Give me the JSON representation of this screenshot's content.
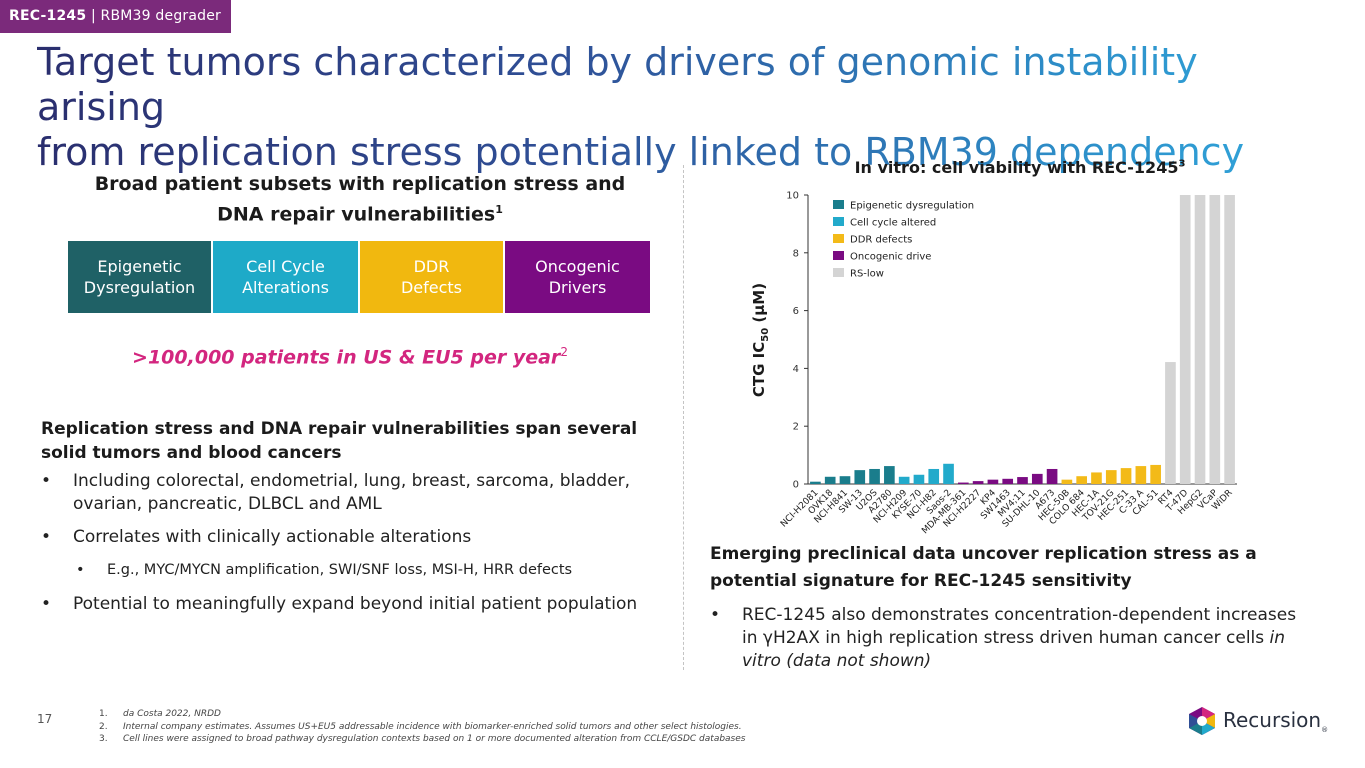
{
  "tag": {
    "code": "REC-1245",
    "sep": " | ",
    "label": "RBM39 degrader"
  },
  "title": {
    "line1": "Target tumors characterized by drivers of genomic instability arising",
    "line2": "from replication stress potentially linked to RBM39 dependency"
  },
  "left": {
    "heading": "Broad patient subsets with replication stress and DNA repair vulnerabilities",
    "heading_sup": "1",
    "boxes": [
      {
        "l1": "Epigenetic",
        "l2": "Dysregulation",
        "color": "#1f6166"
      },
      {
        "l1": "Cell Cycle",
        "l2": "Alterations",
        "color": "#1eaac8"
      },
      {
        "l1": "DDR",
        "l2": "Defects",
        "color": "#f1b80f"
      },
      {
        "l1": "Oncogenic",
        "l2": "Drivers",
        "color": "#7a0b82"
      }
    ],
    "patients": ">100,000 patients in US & EU5 per year",
    "patients_sup": "2",
    "section_heading": "Replication stress and DNA repair vulnerabilities span several solid tumors and blood cancers",
    "bullet1": "Including colorectal, endometrial, lung, breast, sarcoma, bladder, ovarian, pancreatic, DLBCL and AML",
    "bullet2": "Correlates with clinically actionable alterations",
    "sub_bullet": "E.g., MYC/MYCN amplification, SWI/SNF loss, MSI-H, HRR defects",
    "bullet3": "Potential to meaningfully expand beyond initial patient population"
  },
  "chart_title": "In vitro: cell viability with REC-1245",
  "chart_title_sup": "3",
  "chart_data": {
    "type": "bar",
    "title": "In vitro: cell viability with REC-1245",
    "ylabel": "CTG IC50 (µM)",
    "ylabel_main": "CTG IC",
    "ylabel_sub": "50",
    "ylabel_unit": " (µM)",
    "ylim": [
      0,
      10
    ],
    "yticks": [
      0,
      2,
      4,
      6,
      8,
      10
    ],
    "legend": [
      {
        "name": "Epigenetic dysregulation",
        "color": "#1a7d8c"
      },
      {
        "name": "Cell cycle altered",
        "color": "#22aacb"
      },
      {
        "name": "DDR defects",
        "color": "#f3ba18"
      },
      {
        "name": "Oncogenic drive",
        "color": "#7a0b82"
      },
      {
        "name": "RS-low",
        "color": "#d4d4d4"
      }
    ],
    "categories": [
      "NCI-H2081",
      "OVK18",
      "NCI-H841",
      "SW-13",
      "U2OS",
      "A2780",
      "NCI-H209",
      "KYSE-70",
      "NCI-H82",
      "Saos-2",
      "MDA-MB-361",
      "NCI-H2227",
      "KP4",
      "SW1463",
      "MV4;11",
      "SU-DHL-10",
      "A673",
      "HEC-50B",
      "COLO 684",
      "HEC-1A",
      "TOV-21G",
      "HEC-251",
      "C-33 A",
      "CAL-51",
      "RT4",
      "T-47D",
      "HepG2",
      "VCaP",
      "WiDR"
    ],
    "values": [
      0.08,
      0.25,
      0.27,
      0.48,
      0.52,
      0.62,
      0.25,
      0.32,
      0.52,
      0.7,
      0.05,
      0.1,
      0.15,
      0.18,
      0.24,
      0.35,
      0.52,
      0.15,
      0.27,
      0.4,
      0.48,
      0.55,
      0.62,
      0.66,
      4.22,
      10,
      10,
      10,
      10
    ],
    "groups": [
      0,
      0,
      0,
      0,
      0,
      0,
      1,
      1,
      1,
      1,
      3,
      3,
      3,
      3,
      3,
      3,
      3,
      2,
      2,
      2,
      2,
      2,
      2,
      2,
      4,
      4,
      4,
      4,
      4
    ]
  },
  "right": {
    "heading": "Emerging preclinical data uncover replication stress as a potential signature for REC-1245 sensitivity",
    "bullet_main": "REC-1245 also demonstrates concentration-dependent increases in γH2AX in high replication stress driven human cancer cells ",
    "bullet_italic": "in vitro (data not shown)"
  },
  "page_number": "17",
  "footnotes": [
    {
      "n": "1.",
      "t": "da Costa 2022, NRDD"
    },
    {
      "n": "2.",
      "t": "Internal company estimates. Assumes US+EU5 addressable incidence with biomarker-enriched solid tumors and other select histologies."
    },
    {
      "n": "3.",
      "t": "Cell lines were assigned to broad pathway dysregulation contexts based on 1 or more documented alteration from CCLE/GSDC databases"
    }
  ],
  "logo": {
    "text": "Recursion",
    "mark": "®",
    "icon": "recursion-hexagon-icon"
  }
}
